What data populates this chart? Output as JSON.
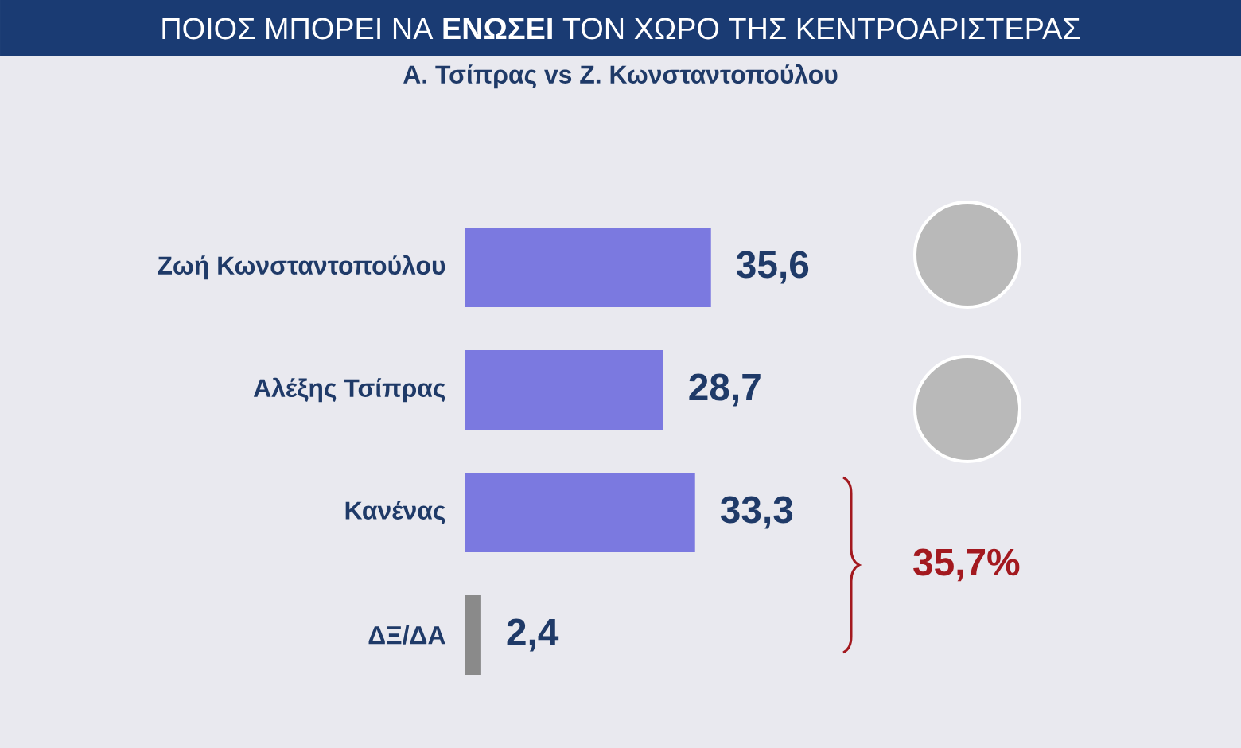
{
  "chart_data": {
    "type": "bar",
    "orientation": "horizontal",
    "title": "ΠΟΙΟΣ  ΜΠΟΡΕΙ ΝΑ **ΕΝΩΣΕΙ** ΤΟΝ ΧΩΡΟ ΤΗΣ ΚΕΝΤΡΟΑΡΙΣΤΕΡΑΣ",
    "subtitle": "Α. Τσίπρας vs Ζ. Κωνσταντοπούλου",
    "categories": [
      "Ζωή Κωνσταντοπούλου",
      "Αλέξης Τσίπρας",
      "Κανένας",
      "ΔΞ/ΔΑ"
    ],
    "values": [
      35.6,
      28.7,
      33.3,
      2.4
    ],
    "value_labels": [
      "35,6",
      "28,7",
      "33,3",
      "2,4"
    ],
    "colors": [
      "#7b79e0",
      "#7b79e0",
      "#7b79e0",
      "#8a8a8a"
    ],
    "annotations": [
      "35,7%"
    ],
    "tick_labels": "y"
  }
}
